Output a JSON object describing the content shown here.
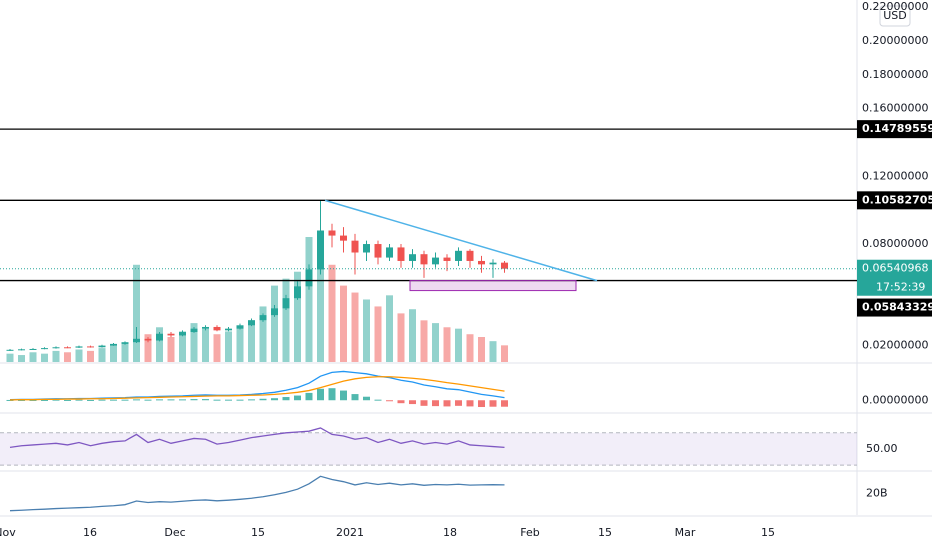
{
  "chart_data": {
    "type": "candlestick",
    "currency": "USD",
    "countdown": "17:52:39",
    "ylim": [
      0.0103,
      0.2242
    ],
    "yticks": [
      {
        "value": 0.22,
        "label": "0.22000000"
      },
      {
        "value": 0.2,
        "label": "0.20000000"
      },
      {
        "value": 0.18,
        "label": "0.18000000"
      },
      {
        "value": 0.16,
        "label": "0.16000000"
      },
      {
        "value": 0.12,
        "label": "0.12000000"
      },
      {
        "value": 0.08,
        "label": "0.08000000"
      },
      {
        "value": 0.02,
        "label": "0.02000000"
      }
    ],
    "x_labels": [
      "Nov",
      "16",
      "Dec",
      "15",
      "2021",
      "18",
      "Feb",
      "15",
      "Mar",
      "15"
    ],
    "up_color": "#26a69a",
    "down_color": "#ef5350",
    "open": [
      0.0172,
      0.0175,
      0.0178,
      0.018,
      0.0185,
      0.019,
      0.0188,
      0.0195,
      0.019,
      0.02,
      0.021,
      0.022,
      0.024,
      0.023,
      0.027,
      0.026,
      0.028,
      0.03,
      0.031,
      0.029,
      0.03,
      0.032,
      0.035,
      0.038,
      0.042,
      0.048,
      0.055,
      0.065,
      0.088,
      0.085,
      0.082,
      0.075,
      0.08,
      0.072,
      0.078,
      0.07,
      0.074,
      0.068,
      0.072,
      0.07,
      0.076,
      0.07,
      0.068,
      0.069
    ],
    "high": [
      0.018,
      0.0182,
      0.0185,
      0.019,
      0.0195,
      0.0195,
      0.02,
      0.02,
      0.0205,
      0.0215,
      0.0225,
      0.031,
      0.025,
      0.028,
      0.028,
      0.029,
      0.031,
      0.032,
      0.032,
      0.031,
      0.033,
      0.036,
      0.039,
      0.044,
      0.05,
      0.058,
      0.068,
      0.1058,
      0.092,
      0.09,
      0.086,
      0.082,
      0.082,
      0.08,
      0.08,
      0.077,
      0.076,
      0.075,
      0.074,
      0.078,
      0.077,
      0.073,
      0.071,
      0.07
    ],
    "low": [
      0.0168,
      0.0172,
      0.0175,
      0.0178,
      0.0182,
      0.0185,
      0.0186,
      0.0188,
      0.0188,
      0.0198,
      0.0205,
      0.0215,
      0.022,
      0.0225,
      0.025,
      0.0255,
      0.0275,
      0.029,
      0.0285,
      0.0285,
      0.0295,
      0.0315,
      0.034,
      0.037,
      0.041,
      0.047,
      0.053,
      0.062,
      0.078,
      0.075,
      0.062,
      0.07,
      0.068,
      0.07,
      0.066,
      0.066,
      0.06,
      0.066,
      0.064,
      0.067,
      0.066,
      0.063,
      0.06,
      0.063
    ],
    "close": [
      0.0175,
      0.0178,
      0.018,
      0.0185,
      0.019,
      0.0188,
      0.0195,
      0.019,
      0.02,
      0.021,
      0.022,
      0.024,
      0.023,
      0.027,
      0.026,
      0.028,
      0.03,
      0.031,
      0.029,
      0.03,
      0.032,
      0.035,
      0.038,
      0.042,
      0.048,
      0.055,
      0.065,
      0.088,
      0.085,
      0.082,
      0.075,
      0.08,
      0.072,
      0.078,
      0.07,
      0.074,
      0.068,
      0.072,
      0.07,
      0.076,
      0.07,
      0.068,
      0.069,
      0.06540968
    ],
    "volume": [
      6,
      5,
      7,
      6,
      8,
      7,
      9,
      8,
      10,
      12,
      14,
      70,
      20,
      25,
      18,
      22,
      28,
      24,
      20,
      22,
      26,
      30,
      40,
      55,
      60,
      65,
      90,
      85,
      70,
      55,
      50,
      45,
      40,
      48,
      35,
      38,
      30,
      28,
      25,
      24,
      20,
      18,
      15,
      12
    ],
    "levels": [
      0.14789559,
      0.10582705,
      0.05843329
    ],
    "last_price": 0.06540968,
    "trendline": [
      0.1058,
      0.0584
    ],
    "zone": [
      0.0584,
      0.0525
    ],
    "macd": {
      "ylim": [
        -0.004,
        0.012
      ],
      "yticks": [
        {
          "value": 0,
          "label": "0.00000000"
        }
      ],
      "macd_color": "#2196f3",
      "signal_color": "#ff9800",
      "macd": [
        0.0002,
        0.0003,
        0.0003,
        0.0004,
        0.0005,
        0.0005,
        0.0006,
        0.0006,
        0.0007,
        0.0008,
        0.0009,
        0.0011,
        0.0011,
        0.0013,
        0.0014,
        0.0015,
        0.0017,
        0.0018,
        0.0017,
        0.0017,
        0.0018,
        0.002,
        0.0023,
        0.0027,
        0.0034,
        0.0043,
        0.0058,
        0.0082,
        0.0095,
        0.0098,
        0.0094,
        0.009,
        0.0082,
        0.0077,
        0.0068,
        0.0062,
        0.0052,
        0.0046,
        0.0039,
        0.0036,
        0.0028,
        0.002,
        0.0015,
        0.0009
      ],
      "signal": [
        0.0001,
        0.0002,
        0.0002,
        0.0003,
        0.0003,
        0.0004,
        0.0004,
        0.0005,
        0.0005,
        0.0006,
        0.0007,
        0.0008,
        0.0009,
        0.001,
        0.0011,
        0.0012,
        0.0013,
        0.0014,
        0.0015,
        0.0015,
        0.0016,
        0.0017,
        0.0018,
        0.002,
        0.0023,
        0.0027,
        0.0033,
        0.0043,
        0.0054,
        0.0065,
        0.0073,
        0.0078,
        0.008,
        0.008,
        0.0078,
        0.0075,
        0.0071,
        0.0066,
        0.006,
        0.0055,
        0.0049,
        0.0043,
        0.0037,
        0.0031
      ],
      "histogram": [
        0.0001,
        0.0001,
        0.0001,
        0.0001,
        0.0002,
        0.0001,
        0.0002,
        0.0001,
        0.0002,
        0.0002,
        0.0002,
        0.0003,
        0.0002,
        0.0003,
        0.0003,
        0.0003,
        0.0004,
        0.0004,
        0.0002,
        0.0002,
        0.0002,
        0.0003,
        0.0005,
        0.0007,
        0.0011,
        0.0016,
        0.0025,
        0.0039,
        0.0041,
        0.0033,
        0.0021,
        0.0012,
        0.0002,
        -0.0003,
        -0.001,
        -0.0013,
        -0.0019,
        -0.002,
        -0.0021,
        -0.0019,
        -0.0021,
        -0.0023,
        -0.0022,
        -0.0022
      ]
    },
    "rsi": {
      "ylim": [
        24,
        92
      ],
      "yticks": [
        {
          "value": 50,
          "label": "50.00"
        }
      ],
      "band": [
        30,
        70
      ],
      "color": "#7e57c2",
      "values": [
        52,
        54,
        55,
        56,
        57,
        55,
        58,
        54,
        57,
        59,
        60,
        68,
        58,
        62,
        57,
        60,
        63,
        62,
        56,
        58,
        61,
        64,
        66,
        68,
        70,
        71,
        72,
        76,
        68,
        66,
        62,
        64,
        58,
        62,
        57,
        60,
        56,
        58,
        56,
        60,
        55,
        54,
        53,
        52
      ]
    },
    "obv": {
      "ylim": [
        10,
        30
      ],
      "yticks": [
        {
          "value": 20,
          "label": "20B"
        }
      ],
      "color": "#4a7fb0",
      "values": [
        12,
        12.2,
        12.5,
        12.7,
        13,
        13.2,
        13.4,
        13.6,
        14,
        14.3,
        14.8,
        16.5,
        15.8,
        16.2,
        16,
        16.4,
        16.8,
        17,
        16.6,
        16.9,
        17.3,
        17.8,
        18.5,
        19.4,
        20.5,
        22,
        24.5,
        28,
        26.5,
        25.5,
        24,
        25,
        24.2,
        24.8,
        24,
        24.5,
        23.8,
        24.2,
        24,
        24.3,
        23.9,
        24,
        24.1,
        24
      ]
    }
  }
}
